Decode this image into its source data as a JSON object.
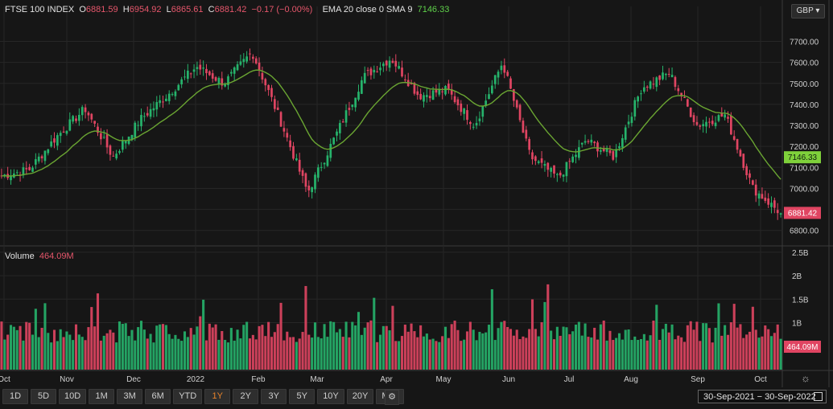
{
  "legend": {
    "symbol": "FTSE 100 INDEX",
    "o_label": "O",
    "o_value": "6881.59",
    "h_label": "H",
    "h_value": "6954.92",
    "l_label": "L",
    "l_value": "6865.61",
    "c_label": "C",
    "c_value": "6881.42",
    "change": "−0.17 (−0.00%)",
    "ema_label": "EMA 20 close 0 SMA 9",
    "ema_value": "7146.33"
  },
  "volume_legend": {
    "label": "Volume",
    "value": "464.09M"
  },
  "currency": "GBP",
  "price_badge": "6881.42",
  "ema_badge": "7146.33",
  "volume_badge": "464.09M",
  "toolbar": {
    "buttons": [
      "1D",
      "5D",
      "10D",
      "1M",
      "3M",
      "6M",
      "YTD",
      "1Y",
      "2Y",
      "3Y",
      "5Y",
      "10Y",
      "20Y",
      "Max"
    ],
    "active": "1Y"
  },
  "date_range": "30-Sep-2021  −  30-Sep-2022",
  "colors": {
    "up": "#26b36b",
    "down": "#e04562",
    "ema": "#6aa532",
    "background": "#161616",
    "grid": "#262626"
  },
  "chart_data": [
    {
      "type": "candlestick",
      "title": "FTSE 100 INDEX",
      "x_labels": [
        "Oct",
        "Nov",
        "Dec",
        "2022",
        "Feb",
        "Mar",
        "Apr",
        "May",
        "Jun",
        "Jul",
        "Aug",
        "Sep",
        "Oct"
      ],
      "y_ticks": [
        6800,
        6900,
        7000,
        7100,
        7200,
        7300,
        7400,
        7500,
        7600,
        7700
      ],
      "y_tick_labels": [
        "6800.00",
        "6900.00",
        "7000.00",
        "7100.00",
        "7200.00",
        "7300.00",
        "7400.00",
        "7500.00",
        "7600.00",
        "7700.00"
      ],
      "ylim": [
        6730,
        7790
      ],
      "approx_close_path": [
        {
          "x": "Oct",
          "close": 7060
        },
        {
          "x": "Oct",
          "close": 7090
        },
        {
          "x": "Nov",
          "close": 7250
        },
        {
          "x": "Nov",
          "close": 7380
        },
        {
          "x": "Dec",
          "close": 7150
        },
        {
          "x": "Dec",
          "close": 7330
        },
        {
          "x": "2022",
          "close": 7450
        },
        {
          "x": "2022",
          "close": 7580
        },
        {
          "x": "Feb",
          "close": 7500
        },
        {
          "x": "Feb",
          "close": 7650
        },
        {
          "x": "Mar",
          "close": 7330
        },
        {
          "x": "Mar",
          "close": 6980
        },
        {
          "x": "Mar",
          "close": 7250
        },
        {
          "x": "Apr",
          "close": 7530
        },
        {
          "x": "Apr",
          "close": 7620
        },
        {
          "x": "May",
          "close": 7440
        },
        {
          "x": "May",
          "close": 7470
        },
        {
          "x": "May",
          "close": 7300
        },
        {
          "x": "Jun",
          "close": 7600
        },
        {
          "x": "Jun",
          "close": 7150
        },
        {
          "x": "Jun",
          "close": 7050
        },
        {
          "x": "Jul",
          "close": 7230
        },
        {
          "x": "Jul",
          "close": 7150
        },
        {
          "x": "Aug",
          "close": 7480
        },
        {
          "x": "Aug",
          "close": 7550
        },
        {
          "x": "Sep",
          "close": 7300
        },
        {
          "x": "Sep",
          "close": 7350
        },
        {
          "x": "Sep",
          "close": 7000
        },
        {
          "x": "Oct",
          "close": 6881.42
        }
      ],
      "ema": {
        "name": "EMA 20 close 0 SMA 9",
        "last": 7146.33
      },
      "last_close": 6881.42
    },
    {
      "type": "bar",
      "title": "Volume",
      "y_ticks": [
        1000000000,
        1500000000,
        2000000000,
        2500000000
      ],
      "y_tick_labels": [
        "1B",
        "1.5B",
        "2B",
        "2.5B"
      ],
      "ylim": [
        0,
        2600000000
      ],
      "last": "464.09M"
    }
  ]
}
